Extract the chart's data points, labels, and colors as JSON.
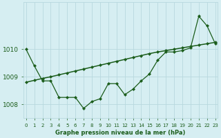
{
  "title": "Graphe pression niveau de la mer (hPa)",
  "bg_color": "#d6eef2",
  "line_color": "#1a5c1a",
  "grid_color": "#b8d8de",
  "x_labels": [
    "0",
    "1",
    "2",
    "3",
    "4",
    "5",
    "6",
    "7",
    "8",
    "9",
    "10",
    "11",
    "12",
    "13",
    "14",
    "15",
    "16",
    "17",
    "18",
    "19",
    "20",
    "21",
    "22",
    "23"
  ],
  "series1_x": [
    0,
    1,
    2,
    3,
    4,
    5,
    6,
    7,
    8,
    9,
    10,
    11,
    12,
    13,
    14,
    15,
    16,
    17,
    18,
    19,
    20,
    21,
    22,
    23
  ],
  "series1_y": [
    1010.0,
    1009.4,
    1008.85,
    1008.85,
    1008.25,
    1008.25,
    1008.25,
    1007.85,
    1008.1,
    1008.2,
    1008.75,
    1008.75,
    1008.35,
    1008.55,
    1008.85,
    1009.1,
    1009.6,
    1009.9,
    1009.9,
    1009.95,
    1010.05,
    1011.2,
    1010.85,
    1010.2
  ],
  "series2_x": [
    0,
    1,
    2,
    3,
    4,
    5,
    6,
    7,
    8,
    9,
    10,
    11,
    12,
    13,
    14,
    15,
    16,
    17,
    18,
    19,
    20,
    21,
    22,
    23
  ],
  "series2_y": [
    1008.8,
    1008.87,
    1008.94,
    1009.0,
    1009.07,
    1009.14,
    1009.21,
    1009.28,
    1009.35,
    1009.42,
    1009.49,
    1009.56,
    1009.63,
    1009.7,
    1009.77,
    1009.84,
    1009.9,
    1009.95,
    1010.0,
    1010.05,
    1010.1,
    1010.15,
    1010.2,
    1010.25
  ],
  "ylim": [
    1007.5,
    1011.7
  ],
  "yticks": [
    1008,
    1009,
    1010
  ],
  "xlim": [
    -0.3,
    23.3
  ],
  "figsize": [
    3.2,
    2.0
  ],
  "dpi": 100
}
